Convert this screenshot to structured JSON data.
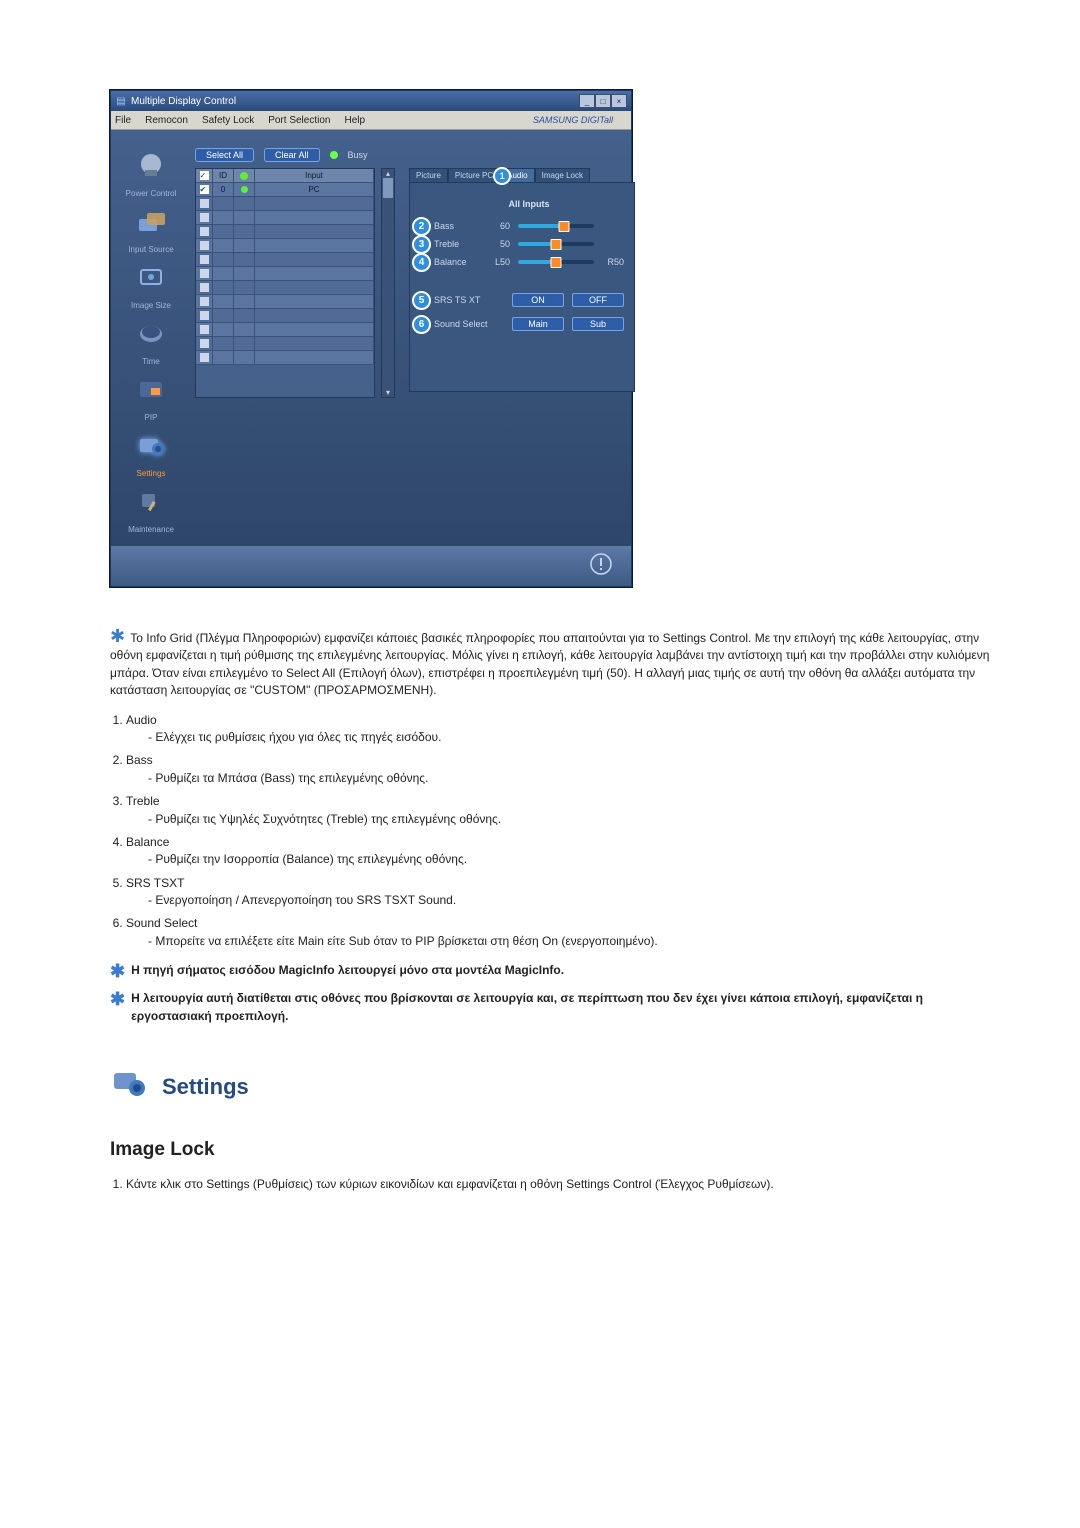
{
  "window": {
    "title": "Multiple Display Control",
    "menubar": [
      "File",
      "Remocon",
      "Safety Lock",
      "Port Selection",
      "Help"
    ],
    "brand": "SAMSUNG DIGITall"
  },
  "sidebar": {
    "items": [
      {
        "label": "Power Control"
      },
      {
        "label": "Input Source"
      },
      {
        "label": "Image Size"
      },
      {
        "label": "Time"
      },
      {
        "label": "PIP"
      },
      {
        "label": "Settings"
      },
      {
        "label": "Maintenance"
      }
    ],
    "active_index": 5
  },
  "toolbar": {
    "select_all": "Select All",
    "clear_all": "Clear All",
    "busy": "Busy"
  },
  "grid": {
    "headers": {
      "chk": "✓",
      "id": "ID",
      "status": "●",
      "input": "Input"
    },
    "rows": [
      {
        "checked": true,
        "id": "0",
        "status": "green",
        "input": "PC"
      },
      {
        "checked": false,
        "id": "",
        "status": "",
        "input": ""
      },
      {
        "checked": false,
        "id": "",
        "status": "",
        "input": ""
      },
      {
        "checked": false,
        "id": "",
        "status": "",
        "input": ""
      },
      {
        "checked": false,
        "id": "",
        "status": "",
        "input": ""
      },
      {
        "checked": false,
        "id": "",
        "status": "",
        "input": ""
      },
      {
        "checked": false,
        "id": "",
        "status": "",
        "input": ""
      },
      {
        "checked": false,
        "id": "",
        "status": "",
        "input": ""
      },
      {
        "checked": false,
        "id": "",
        "status": "",
        "input": ""
      },
      {
        "checked": false,
        "id": "",
        "status": "",
        "input": ""
      },
      {
        "checked": false,
        "id": "",
        "status": "",
        "input": ""
      },
      {
        "checked": false,
        "id": "",
        "status": "",
        "input": ""
      },
      {
        "checked": false,
        "id": "",
        "status": "",
        "input": ""
      }
    ]
  },
  "tabs": [
    {
      "label": "Picture",
      "circ": ""
    },
    {
      "label": "Picture PC",
      "circ": ""
    },
    {
      "label": "Audio",
      "circ": "1"
    },
    {
      "label": "Image Lock",
      "circ": ""
    }
  ],
  "active_tab": 2,
  "panel": {
    "all_inputs": "All Inputs",
    "sliders": [
      {
        "n": "2",
        "name": "Bass",
        "val": "60",
        "pct": 60,
        "right": ""
      },
      {
        "n": "3",
        "name": "Treble",
        "val": "50",
        "pct": 50,
        "right": ""
      },
      {
        "n": "4",
        "name": "Balance",
        "val": "L50",
        "pct": 50,
        "right": "R50"
      }
    ],
    "options": [
      {
        "n": "5",
        "label": "SRS TS XT",
        "a": "ON",
        "b": "OFF"
      },
      {
        "n": "6",
        "label": "Sound Select",
        "a": "Main",
        "b": "Sub"
      }
    ]
  },
  "doc": {
    "intro": "Το Info Grid (Πλέγμα Πληροφοριών) εμφανίζει κάποιες βασικές πληροφορίες που απαιτούνται για το Settings Control. Με την επιλογή της κάθε λειτουργίας, στην οθόνη εμφανίζεται η τιμή ρύθμισης της επιλεγμένης λειτουργίας. Μόλις γίνει η επιλογή, κάθε λειτουργία λαμβάνει την αντίστοιχη τιμή και την προβάλλει στην κυλιόμενη μπάρα. Όταν είναι επιλεγμένο το Select All (Επιλογή όλων), επιστρέφει η προεπιλεγμένη τιμή (50). Η αλλαγή μιας τιμής σε αυτή την οθόνη θα αλλάξει αυτόματα την κατάσταση λειτουργίας σε \"CUSTOM\" (ΠΡΟΣΑΡΜΟΣΜΕΝΗ).",
    "items": [
      {
        "h": "Audio",
        "d": "Ελέγχει τις ρυθμίσεις ήχου για όλες τις πηγές εισόδου."
      },
      {
        "h": "Bass",
        "d": "Ρυθμίζει τα Μπάσα (Bass) της επιλεγμένης οθόνης."
      },
      {
        "h": "Treble",
        "d": "Ρυθμίζει τις Υψηλές Συχνότητες (Treble) της επιλεγμένης οθόνης."
      },
      {
        "h": "Balance",
        "d": "Ρυθμίζει την Ισορροπία (Balance) της επιλεγμένης οθόνης."
      },
      {
        "h": "SRS TSXT",
        "d": "Ενεργοποίηση / Απενεργοποίηση του SRS TSXT Sound."
      },
      {
        "h": "Sound Select",
        "d": "Μπορείτε να επιλέξετε είτε Main είτε Sub όταν το PIP βρίσκεται στη θέση On (ενεργοποιημένο)."
      }
    ],
    "note1": "Η πηγή σήματος εισόδου MagicInfo λειτουργεί μόνο στα μοντέλα MagicInfo.",
    "note2": "Η λειτουργία αυτή διατίθεται στις οθόνες που βρίσκονται σε λειτουργία και, σε περίπτωση που δεν έχει γίνει κάποια επιλογή, εμφανίζεται η εργοστασιακή προεπιλογή.",
    "section_title": "Settings",
    "subhead": "Image Lock",
    "step1": "Κάντε κλικ στο Settings (Ρυθμίσεις) των κύριων εικονιδίων και εμφανίζεται η οθόνη Settings Control (Έλεγχος Ρυθμίσεων)."
  }
}
